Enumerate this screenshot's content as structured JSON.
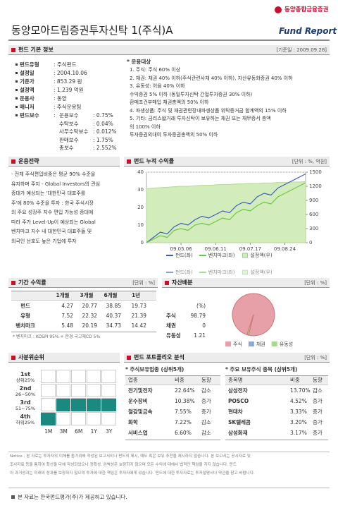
{
  "header": {
    "company": "동양종합금융증권",
    "title": "동양모아드림증권투자신탁 1(주식)A",
    "brand": "Fund Report"
  },
  "basic_info": {
    "title": "펀드 기본 정보",
    "unit": "[기준일 : 2009.09.28]",
    "items": [
      {
        "label": "펀드유형",
        "value": ": 주식펀드"
      },
      {
        "label": "설정일",
        "value": ": 2004.10.06"
      },
      {
        "label": "기준가",
        "value": ": 853.29 원"
      },
      {
        "label": "설정액",
        "value": ": 1,239 억원"
      },
      {
        "label": "운용사",
        "value": ": 동양"
      },
      {
        "label": "매니저",
        "value": ": 주식운용팀"
      },
      {
        "label": "펀드보수",
        "value": ":"
      }
    ],
    "fees": [
      [
        "운용보수",
        ": 0.75%"
      ],
      [
        "수탁보수",
        ": 0.04%"
      ],
      [
        "사무수탁보수",
        ": 0.012%"
      ],
      [
        "판매보수",
        ": 1.75%"
      ],
      [
        "총보수",
        ": 2.552%"
      ]
    ],
    "investment": {
      "title": "* 운용대상",
      "lines": [
        "1. 주식: 주식 60% 이상",
        "2. 채권: 채권 40% 이하(주식관련사채 40% 이하), 자산유동화증권 40% 이하",
        "3. 유동성: 어음 40% 이하",
        "수익증권 5% 이하 (동일투자신탁 간접투자증권 30% 이하)",
        "환매조건부매입 채권총액의 50% 이하",
        "4. 파생상품: 주식 및 채권관련장내파생상품 위탁증거금 합계액의 15% 이하",
        "5. 기타: 금리스왑거래 투자신탁이 보유하는 채권 또는 채무증서 총액",
        "의 100% 이하",
        "투자증권외대여 투자증권총액의 50% 이하"
      ]
    }
  },
  "strategy": {
    "title": "운용전략",
    "lines": [
      "- 전체 주식편입비중은 평균 90% 수준을",
      "유지하며 주지 - Global Investors의 관심",
      "증대가 예상되는 '대한민국 대표주를",
      "주'에 80% 수준을 투자 : 한국 주식시장",
      "의 주요 성장주 지수 편입 가능성 증대에",
      "따라 주가 Level-Up이 예상되는 Global",
      "벤치마크 지수 내 대한민국 대표주들 및",
      "외국인 선호도 높은 기업에 투자"
    ]
  },
  "cumulative_return": {
    "title": "펀드 누적 수익률",
    "unit": "[단위 : %, 억원]",
    "chart_data": {
      "type": "line",
      "categories": [
        null,
        null,
        null,
        null,
        null,
        "09.05.06",
        null,
        null,
        null,
        null,
        "09.06.11",
        null,
        null,
        null,
        null,
        "09.07.17",
        null,
        null,
        null,
        null,
        "09.08.24",
        null,
        null,
        null
      ],
      "series": [
        {
          "name": "펀드(좌)",
          "color": "#3b5fc0",
          "values": [
            0,
            3,
            6,
            5,
            9,
            11,
            10,
            13,
            15,
            14,
            16,
            18,
            17,
            21,
            23,
            22,
            26,
            28,
            27,
            31,
            33,
            35,
            37,
            39
          ]
        },
        {
          "name": "벤치마크(좌)",
          "color": "#6cc644",
          "values": [
            0,
            2,
            4,
            3,
            7,
            8,
            7,
            10,
            11,
            10,
            12,
            14,
            13,
            17,
            19,
            18,
            21,
            23,
            22,
            26,
            28,
            30,
            32,
            34
          ]
        },
        {
          "name": "설정액(우)",
          "color": "#d3ecbb",
          "axis": "y2",
          "values": [
            1150,
            1160,
            1170,
            1180,
            1190,
            1200,
            1200,
            1210,
            1220,
            1220,
            1230,
            1240,
            1240,
            1250,
            1250,
            1260,
            1260,
            1270,
            1270,
            1280,
            1280,
            1290,
            1290,
            1300
          ]
        }
      ],
      "ylim": [
        0,
        40
      ],
      "yticks": [
        0,
        10,
        20,
        30,
        40
      ],
      "y2lim": [
        0,
        1500
      ],
      "y2ticks": [
        0,
        300,
        600,
        900,
        1200,
        1500
      ],
      "grid": true
    }
  },
  "period_return": {
    "title": "기간 수익률",
    "unit": "[단위 : %]",
    "header": [
      "1개월",
      "3개월",
      "6개월",
      "1년"
    ],
    "rows": [
      {
        "label": "펀드",
        "values": [
          4.27,
          20.77,
          38.85,
          19.73
        ]
      },
      {
        "label": "유형",
        "values": [
          7.52,
          22.32,
          40.37,
          21.39
        ]
      },
      {
        "label": "벤치마크",
        "values": [
          5.48,
          20.19,
          34.73,
          14.42
        ]
      }
    ],
    "note": "* 벤치마크 : KOSPI 95% + 한경 국고채CD 5%"
  },
  "asset_allocation": {
    "title": "자산배분",
    "unit": "[단위 : %]",
    "col_header": "(%)",
    "chart_data": {
      "type": "pie",
      "categories": [
        "주식",
        "채권",
        "유동성"
      ],
      "values": [
        98.79,
        0,
        1.21
      ],
      "colors": [
        "#e8a0a8",
        "#8fa8d8",
        "#a8d890"
      ]
    }
  },
  "quartile_rank": {
    "title": "사분위순위",
    "ranks": [
      {
        "rank": "1st",
        "range": "상위25%"
      },
      {
        "rank": "2nd",
        "range": "26~50%"
      },
      {
        "rank": "3rd",
        "range": "51~75%"
      },
      {
        "rank": "4th",
        "range": "하위25%"
      }
    ],
    "periods": [
      "1M",
      "3M",
      "6M",
      "1Y",
      "3Y"
    ],
    "fund_quartile": [
      4,
      3,
      3,
      3,
      3
    ],
    "color": "#1a8a80"
  },
  "portfolio": {
    "title": "펀드 포트폴리오 분석",
    "unit": "[단위 : %]",
    "sectors": {
      "title": "* 주식보유업종 (상위5개)",
      "header": [
        "업종",
        "비중",
        "동향"
      ],
      "rows": [
        [
          "전기및전자",
          "22.64%",
          "감소"
        ],
        [
          "운수장비",
          "10.38%",
          "증가"
        ],
        [
          "철강및금속",
          "7.55%",
          "증가"
        ],
        [
          "화학",
          "7.22%",
          "감소"
        ],
        [
          "서비스업",
          "6.60%",
          "감소"
        ]
      ]
    },
    "stocks": {
      "title": "* 주요 보유주식 종목 (상위5개)",
      "header": [
        "종목명",
        "비중",
        "동향"
      ],
      "rows": [
        [
          "삼성전자",
          "13.70%",
          "감소"
        ],
        [
          "POSCO",
          "4.52%",
          "증가"
        ],
        [
          "현대차",
          "3.33%",
          "증가"
        ],
        [
          "SK텔레콤",
          "3.20%",
          "증가"
        ],
        [
          "삼성화재",
          "3.17%",
          "증가"
        ]
      ]
    }
  },
  "notice": [
    "Notice : 본 자료는 투자자의 이해를 돕기위해 작성된 보고서이나 펀드의 제시, 매도 혹은 보유 추천을 제시하지 않습니다. 본 보고서는 공시자료 및",
    "조사자료 등을 통하여 최선을 다해 작성되었으나 정확성, 완벽성은 보장하지 않으며 모든 수익에 대해서 법적인 책임을 지지 않습니다. 펀드",
    "의 과거성과는 미래의 성과를 보장하지 않으며 투자에 대한 책임은 투자자에게 있습니다. 펀드에 대한 투자자료는 투자설명서나 약관을 참고 바랍니다."
  ],
  "footer": "본 자료는 한국펀드평가(주)가 제공하고 있습니다."
}
